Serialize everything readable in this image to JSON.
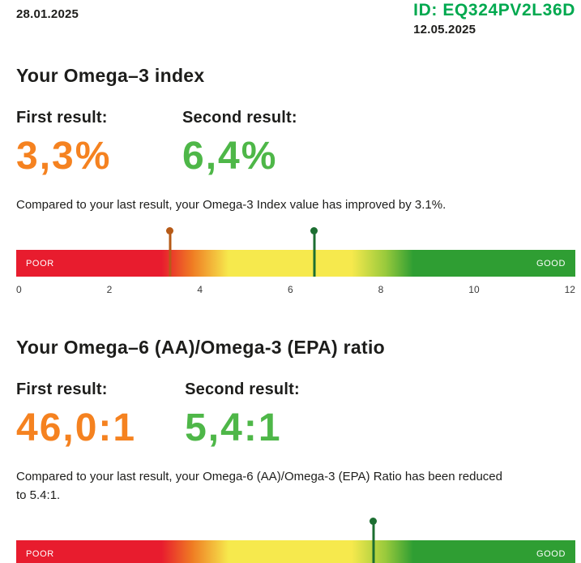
{
  "colors": {
    "accent_orange": "#f58220",
    "accent_green": "#4eb748",
    "id_green": "#00a94f",
    "marker_orange": "#b65a17",
    "marker_green": "#1c6e31",
    "bar_red": "#e81c2e",
    "bar_yellow": "#f6e94d",
    "bar_green": "#2f9e33"
  },
  "header": {
    "left_date": "28.01.2025",
    "id": "ID: EQ324PV2L36D",
    "right_date": "12.05.2025"
  },
  "omega3_section": {
    "title": "Your Omega–3 index",
    "first_label": "First result:",
    "first_value": "3,3%",
    "second_label": "Second result:",
    "second_value": "6,4%",
    "comparison": "Compared to your last result, your Omega-3 Index value has improved by 3.1%.",
    "gauge": {
      "poor_label": "POOR",
      "good_label": "GOOD",
      "min": 0,
      "max": 12,
      "ticks": [
        "0",
        "2",
        "4",
        "6",
        "8",
        "10",
        "12"
      ],
      "markers": [
        {
          "name": "first-result-marker",
          "value": 3.3,
          "percent": 27.5,
          "color": "#b65a17"
        },
        {
          "name": "second-result-marker",
          "value": 6.4,
          "percent": 53.3,
          "color": "#1c6e31"
        }
      ]
    }
  },
  "omega6_section": {
    "title": "Your Omega–6 (AA)/Omega-3 (EPA) ratio",
    "first_label": "First result:",
    "first_value": "46,0:1",
    "second_label": "Second result:",
    "second_value": "5,4:1",
    "comparison": "Compared to your last result, your Omega-6 (AA)/Omega-3 (EPA) Ratio has been reduced to 5.4:1.",
    "gauge": {
      "poor_label": "POOR",
      "good_label": "GOOD",
      "markers": [
        {
          "name": "second-result-marker",
          "value": 5.4,
          "percent": 63.9,
          "color": "#1c6e31"
        }
      ]
    }
  }
}
